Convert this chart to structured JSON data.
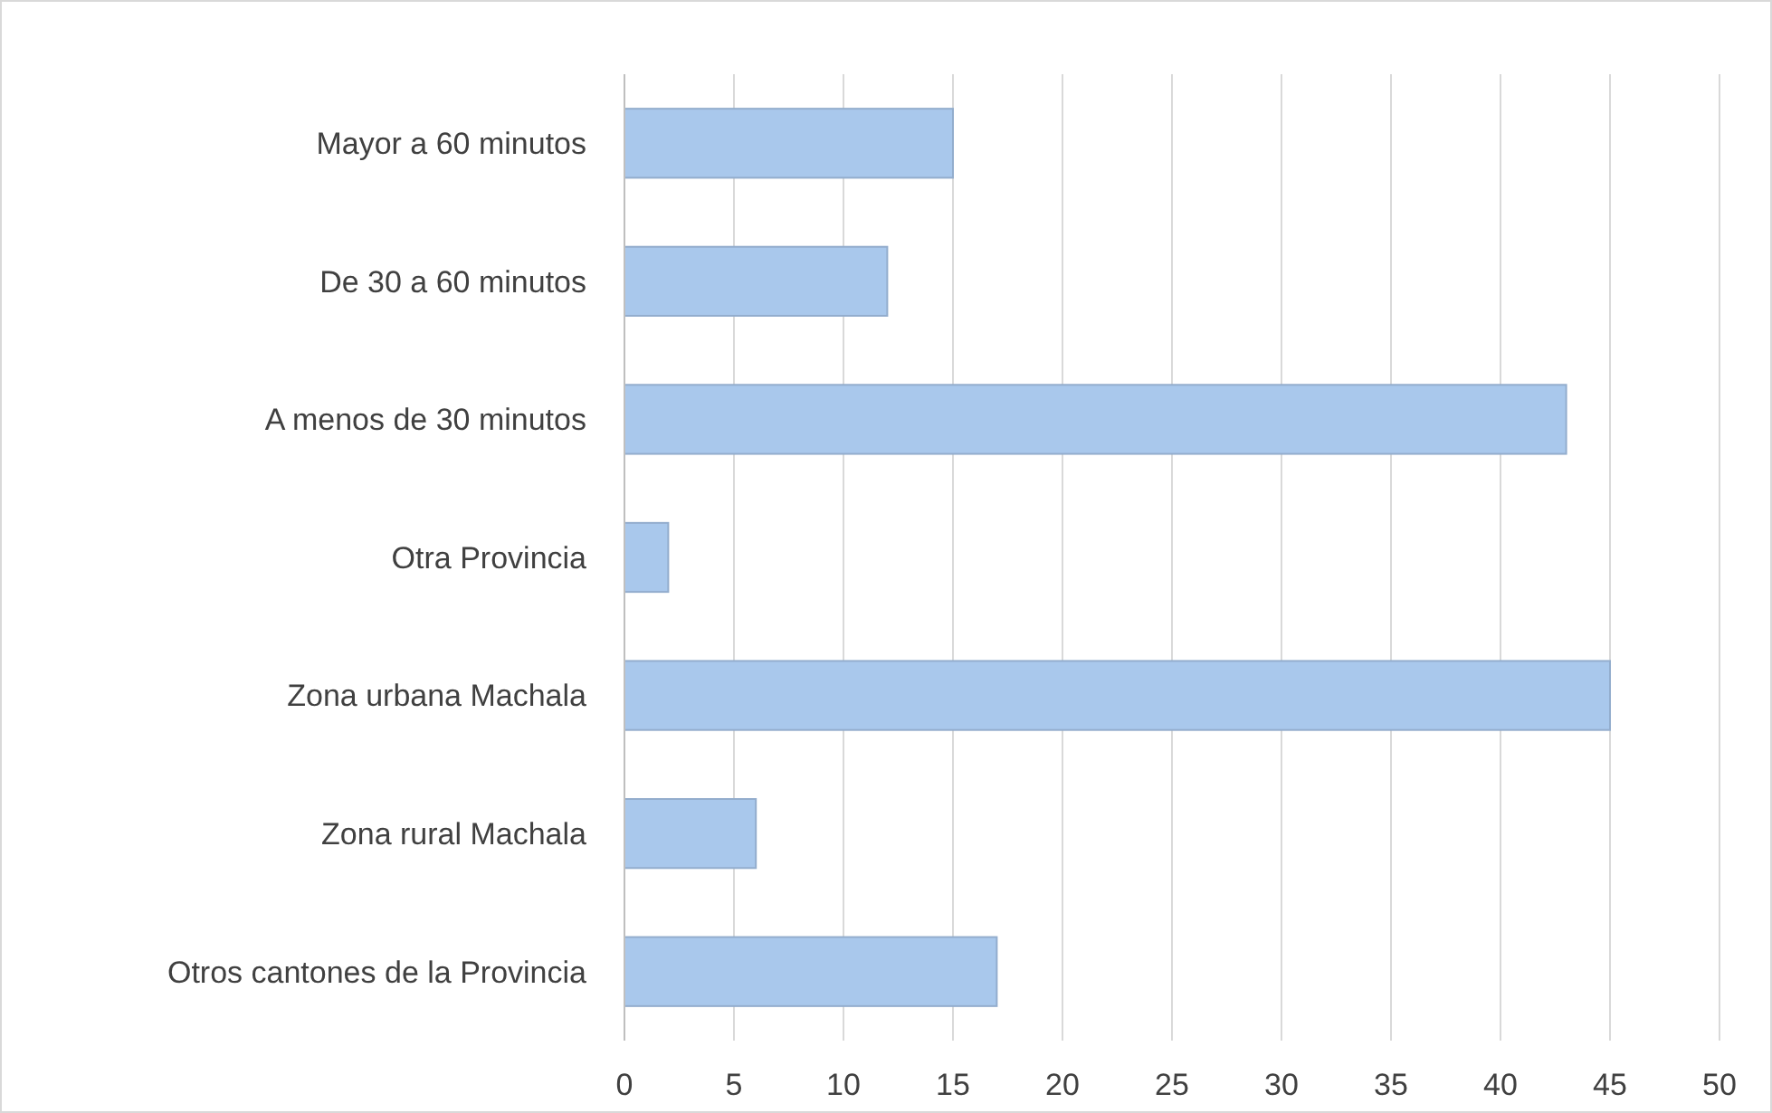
{
  "chart_data": {
    "type": "bar",
    "orientation": "horizontal",
    "categories": [
      "Mayor a 60 minutos",
      "De 30 a 60 minutos",
      "A menos de 30 minutos",
      "Otra Provincia",
      "Zona urbana Machala",
      "Zona rural Machala",
      "Otros cantones de la Provincia"
    ],
    "values": [
      15,
      12,
      43,
      2,
      45,
      6,
      17
    ],
    "color": "#a9c8ec",
    "xlim": [
      0,
      50
    ],
    "xticks": [
      0,
      5,
      10,
      15,
      20,
      25,
      30,
      35,
      40,
      45,
      50
    ],
    "grid": "x"
  }
}
